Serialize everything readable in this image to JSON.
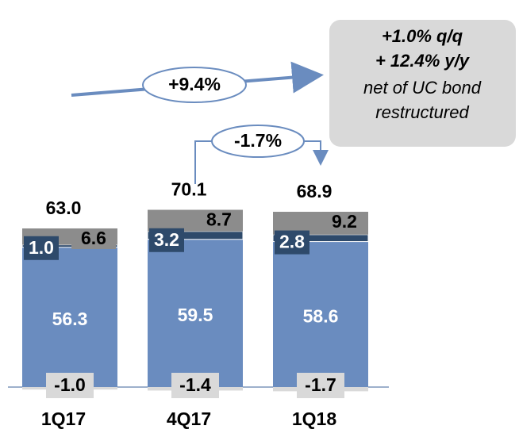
{
  "chart_data": {
    "type": "bar",
    "stacked": true,
    "categories": [
      "1Q17",
      "4Q17",
      "1Q18"
    ],
    "series": [
      {
        "color": "#6a8cbf",
        "values": [
          56.3,
          59.5,
          58.6
        ]
      },
      {
        "color": "#2e4a6b",
        "values": [
          1,
          3.2,
          2.8
        ],
        "value_labels": [
          "1.0",
          "3.2",
          "2.8"
        ]
      },
      {
        "color": "#8c8c8c",
        "values": [
          6.6,
          8.7,
          9.2
        ]
      },
      {
        "color": "#d9d9d9",
        "values": [
          -1,
          -1.4,
          -1.7
        ],
        "value_labels": [
          "-1.0",
          "-1.4",
          "-1.7"
        ]
      }
    ],
    "totals": [
      63,
      70.1,
      68.9
    ],
    "total_labels": [
      "63.0",
      "70.1",
      "68.9"
    ],
    "annotations": {
      "growth": "+9.4%",
      "qoq": "-1.7%",
      "note": [
        "+1.0% q/q",
        "+ 12.4% y/y",
        "net of UC bond",
        "restructured"
      ]
    }
  }
}
